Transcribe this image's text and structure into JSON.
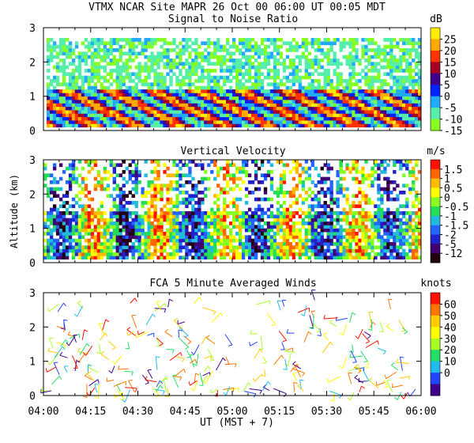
{
  "header": {
    "title": "VTMX  NCAR Site  MAPR 26 Oct 00  06:00 UT  00:05  MDT"
  },
  "axes": {
    "ylabel": "Altitude (km)",
    "xlabel": "UT  (MST + 7)",
    "xticks": [
      "04:00",
      "04:15",
      "04:30",
      "04:45",
      "05:00",
      "05:15",
      "05:30",
      "05:45",
      "06:00"
    ],
    "yticks": [
      "0",
      "1",
      "2",
      "3"
    ]
  },
  "panels": {
    "snr": {
      "title": "Signal to Noise Ratio",
      "unit": "dB",
      "scale_labels": [
        "25",
        "20",
        "15",
        "10",
        "5",
        "0",
        "-5",
        "-10",
        "-15"
      ],
      "scale_colors": [
        "#ffee00",
        "#ffaa00",
        "#ff3300",
        "#a50021",
        "#40008a",
        "#0022ff",
        "#22aaff",
        "#55eeaa",
        "#88ff22"
      ]
    },
    "vv": {
      "title": "Vertical Velocity",
      "unit": "m/s",
      "scale_labels": [
        "1.5",
        "1",
        "0.5",
        "0",
        "-0.5",
        "-1",
        "-1.5",
        "-2",
        "-5",
        "-12"
      ],
      "scale_colors": [
        "#ff1100",
        "#ff6600",
        "#ffbb00",
        "#ffff00",
        "#88ff22",
        "#22dd55",
        "#22bbdd",
        "#2266ff",
        "#2222cc",
        "#400070",
        "#200010"
      ]
    },
    "winds": {
      "title": "FCA 5 Minute Averaged Winds",
      "unit": "knots",
      "scale_labels": [
        "60",
        "50",
        "40",
        "30",
        "20",
        "10",
        "0"
      ],
      "scale_colors": [
        "#ff1100",
        "#ff7700",
        "#ffcc00",
        "#ffff00",
        "#aaff22",
        "#22dd66",
        "#22bbee",
        "#2244ff",
        "#40008a"
      ]
    }
  },
  "chart_data": [
    {
      "type": "heatmap",
      "title": "Signal to Noise Ratio",
      "xlabel": "UT  (MST + 7)",
      "ylabel": "Altitude (km)",
      "x_range": [
        "04:00",
        "06:00"
      ],
      "ylim": [
        0,
        3
      ],
      "colorbar_unit": "dB",
      "colorbar_ticks": [
        25,
        20,
        15,
        10,
        5,
        0,
        -5,
        -10,
        -15
      ]
    },
    {
      "type": "heatmap",
      "title": "Vertical Velocity",
      "xlabel": "UT  (MST + 7)",
      "ylabel": "Altitude (km)",
      "x_range": [
        "04:00",
        "06:00"
      ],
      "ylim": [
        0,
        3
      ],
      "colorbar_unit": "m/s",
      "colorbar_ticks": [
        1.5,
        1,
        0.5,
        0,
        -0.5,
        -1,
        -1.5,
        -2,
        -5,
        -12
      ]
    },
    {
      "type": "scatter",
      "title": "FCA 5 Minute Averaged Winds",
      "xlabel": "UT  (MST + 7)",
      "ylabel": "Altitude (km)",
      "x_range": [
        "04:00",
        "06:00"
      ],
      "ylim": [
        0,
        3
      ],
      "colorbar_unit": "knots",
      "colorbar_ticks": [
        60,
        50,
        40,
        30,
        20,
        10,
        0
      ]
    }
  ]
}
